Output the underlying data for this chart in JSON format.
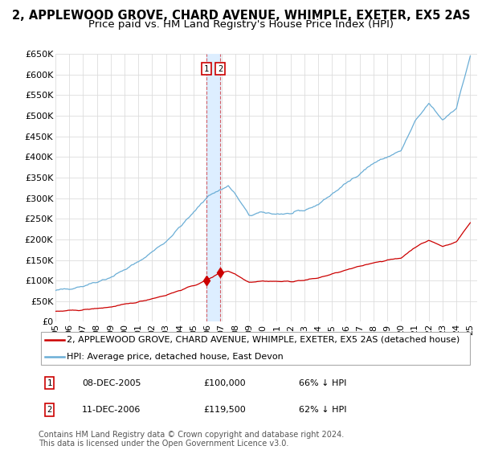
{
  "title": "2, APPLEWOOD GROVE, CHARD AVENUE, WHIMPLE, EXETER, EX5 2AS",
  "subtitle": "Price paid vs. HM Land Registry's House Price Index (HPI)",
  "legend_label_property": "2, APPLEWOOD GROVE, CHARD AVENUE, WHIMPLE, EXETER, EX5 2AS (detached house)",
  "legend_label_hpi": "HPI: Average price, detached house, East Devon",
  "hpi_color": "#6baed6",
  "property_color": "#cc0000",
  "vline_color": "#cc0000",
  "highlight_color": "#ddeeff",
  "ytick_labels": [
    "£0",
    "£50K",
    "£100K",
    "£150K",
    "£200K",
    "£250K",
    "£300K",
    "£350K",
    "£400K",
    "£450K",
    "£500K",
    "£550K",
    "£600K",
    "£650K"
  ],
  "yticks": [
    0,
    50000,
    100000,
    150000,
    200000,
    250000,
    300000,
    350000,
    400000,
    450000,
    500000,
    550000,
    600000,
    650000
  ],
  "transactions": [
    {
      "date": 2005.92,
      "price": 100000,
      "label": "1",
      "annotation": "08-DEC-2005",
      "amount": "£100,000",
      "hpi_pct": "66% ↓ HPI"
    },
    {
      "date": 2006.92,
      "price": 119500,
      "label": "2",
      "annotation": "11-DEC-2006",
      "amount": "£119,500",
      "hpi_pct": "62% ↓ HPI"
    }
  ],
  "copyright_text": "Contains HM Land Registry data © Crown copyright and database right 2024.\nThis data is licensed under the Open Government Licence v3.0.",
  "background_color": "#ffffff",
  "grid_color": "#dddddd",
  "title_fontsize": 10.5,
  "subtitle_fontsize": 9.5,
  "tick_fontsize": 8,
  "legend_fontsize": 8,
  "note_fontsize": 7,
  "xlim_start": 1995.0,
  "xlim_end": 2025.5,
  "ylim": [
    0,
    650000
  ],
  "xtick_years": [
    1995,
    1996,
    1997,
    1998,
    1999,
    2000,
    2001,
    2002,
    2003,
    2004,
    2005,
    2006,
    2007,
    2008,
    2009,
    2010,
    2011,
    2012,
    2013,
    2014,
    2015,
    2016,
    2017,
    2018,
    2019,
    2020,
    2021,
    2022,
    2023,
    2024,
    2025
  ]
}
